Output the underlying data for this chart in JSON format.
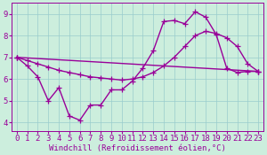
{
  "line_volatile": {
    "x": [
      0,
      1,
      2,
      3,
      4,
      5,
      6,
      7,
      8,
      9,
      10,
      11,
      12,
      13,
      14,
      15,
      16,
      17,
      18,
      19,
      20,
      21,
      22,
      23
    ],
    "y": [
      7.0,
      6.6,
      6.1,
      5.0,
      5.6,
      4.3,
      4.1,
      4.8,
      4.8,
      5.5,
      5.5,
      5.9,
      6.5,
      7.3,
      8.65,
      8.7,
      8.55,
      9.1,
      8.85,
      8.05,
      6.5,
      6.3,
      6.35,
      6.35
    ]
  },
  "line_smooth": {
    "x": [
      0,
      1,
      2,
      3,
      4,
      5,
      6,
      7,
      8,
      9,
      10,
      11,
      12,
      13,
      14,
      15,
      16,
      17,
      18,
      19,
      20,
      21,
      22,
      23
    ],
    "y": [
      7.0,
      6.85,
      6.7,
      6.55,
      6.4,
      6.3,
      6.2,
      6.1,
      6.05,
      6.0,
      5.95,
      6.0,
      6.1,
      6.3,
      6.6,
      7.0,
      7.5,
      8.0,
      8.2,
      8.1,
      7.9,
      7.5,
      6.7,
      6.35
    ]
  },
  "line_straight": {
    "x": [
      0,
      23
    ],
    "y": [
      7.0,
      6.35
    ]
  },
  "bg_color": "#cceedd",
  "line_color": "#990099",
  "grid_color": "#99cccc",
  "xlabel": "Windchill (Refroidissement éolien,°C)",
  "xlim": [
    -0.5,
    23.5
  ],
  "ylim": [
    3.6,
    9.5
  ],
  "xticks": [
    0,
    1,
    2,
    3,
    4,
    5,
    6,
    7,
    8,
    9,
    10,
    11,
    12,
    13,
    14,
    15,
    16,
    17,
    18,
    19,
    20,
    21,
    22,
    23
  ],
  "yticks": [
    4,
    5,
    6,
    7,
    8,
    9
  ],
  "xlabel_fontsize": 6.5,
  "tick_fontsize": 6.5,
  "line_width": 1.0,
  "marker": "+",
  "marker_size": 4,
  "marker_edge_width": 0.9
}
